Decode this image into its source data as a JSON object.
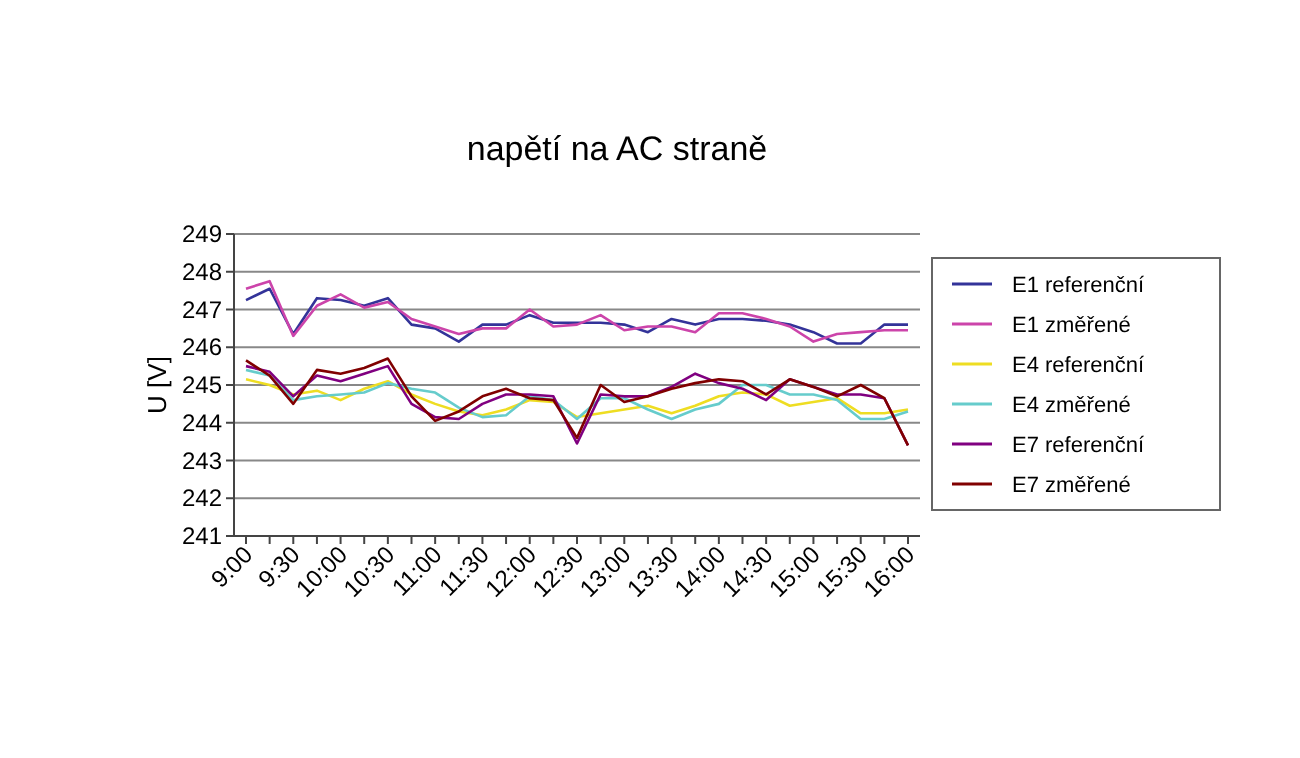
{
  "chart_data": {
    "type": "line",
    "title": "napětí na AC straně",
    "ylabel": "U [V]",
    "categories": [
      "9:00",
      null,
      "9:30",
      null,
      "10:00",
      null,
      "10:30",
      null,
      "11:00",
      null,
      "11:30",
      null,
      "12:00",
      null,
      "12:30",
      null,
      "13:00",
      null,
      "13:30",
      null,
      "14:00",
      null,
      "14:30",
      null,
      "15:00",
      null,
      "15:30",
      null,
      "16:00"
    ],
    "series": [
      {
        "name": "E1 referenční",
        "color": "#333399",
        "values": [
          247.25,
          247.55,
          246.35,
          247.3,
          247.25,
          247.1,
          247.3,
          246.6,
          246.5,
          246.15,
          246.6,
          246.6,
          246.85,
          246.65,
          246.65,
          246.65,
          246.6,
          246.4,
          246.75,
          246.6,
          246.75,
          246.75,
          246.7,
          246.6,
          246.4,
          246.1,
          246.1,
          246.6,
          246.6
        ]
      },
      {
        "name": "E1 změřené",
        "color": "#cc44aa",
        "values": [
          247.55,
          247.75,
          246.3,
          247.1,
          247.4,
          247.05,
          247.2,
          246.75,
          246.55,
          246.35,
          246.5,
          246.5,
          247.0,
          246.55,
          246.6,
          246.85,
          246.45,
          246.55,
          246.55,
          246.4,
          246.9,
          246.9,
          246.75,
          246.55,
          246.15,
          246.35,
          246.4,
          246.45,
          246.45
        ]
      },
      {
        "name": "E4 referenční",
        "color": "#eedd22",
        "values": [
          245.15,
          245.0,
          244.75,
          244.85,
          244.6,
          244.9,
          245.1,
          244.75,
          244.5,
          244.3,
          244.2,
          244.35,
          244.6,
          244.55,
          244.15,
          244.25,
          244.35,
          244.45,
          244.25,
          244.45,
          244.7,
          244.8,
          244.75,
          244.45,
          244.55,
          244.65,
          244.25,
          244.25,
          244.35
        ]
      },
      {
        "name": "E4 změřené",
        "color": "#66cccc",
        "values": [
          245.4,
          245.25,
          244.6,
          244.7,
          244.75,
          244.8,
          245.05,
          244.9,
          244.8,
          244.4,
          244.15,
          244.2,
          244.7,
          244.6,
          244.1,
          244.65,
          244.65,
          244.35,
          244.1,
          244.35,
          244.5,
          245.0,
          245.0,
          244.75,
          244.75,
          244.6,
          244.1,
          244.1,
          244.3
        ]
      },
      {
        "name": "E7 referenční",
        "color": "#800080",
        "values": [
          245.5,
          245.35,
          244.7,
          245.25,
          245.1,
          245.3,
          245.5,
          244.5,
          244.15,
          244.1,
          244.5,
          244.75,
          244.75,
          244.7,
          243.45,
          244.75,
          244.7,
          244.7,
          244.95,
          245.3,
          245.05,
          244.9,
          244.6,
          245.15,
          244.95,
          244.75,
          244.75,
          244.65,
          243.4
        ]
      },
      {
        "name": "E7 změřené",
        "color": "#800000",
        "values": [
          245.65,
          245.25,
          244.5,
          245.4,
          245.3,
          245.45,
          245.7,
          244.7,
          244.05,
          244.3,
          244.7,
          244.9,
          244.65,
          244.6,
          243.6,
          245.0,
          244.55,
          244.7,
          244.9,
          245.05,
          245.15,
          245.1,
          244.75,
          245.15,
          244.95,
          244.7,
          245.0,
          244.65,
          243.4
        ]
      }
    ],
    "ylim": [
      241,
      249
    ],
    "yticks": [
      241,
      242,
      243,
      244,
      245,
      246,
      247,
      248,
      249
    ],
    "grid": "y",
    "legend": "right",
    "marker": "none",
    "line_style": "solid"
  }
}
